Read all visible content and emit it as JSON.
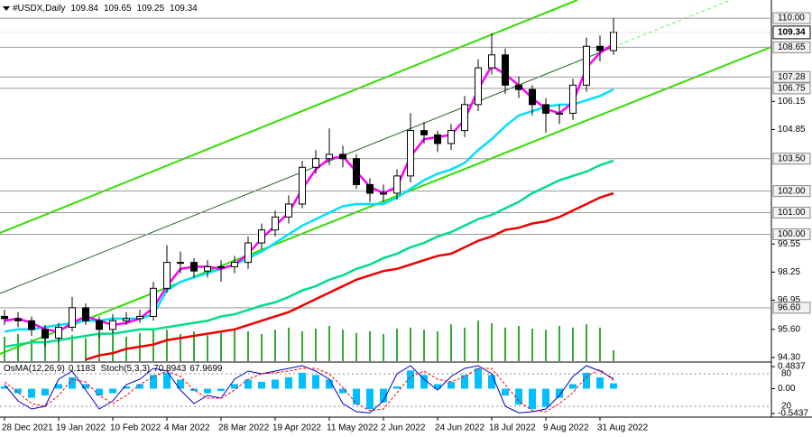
{
  "chart_data": [
    {
      "type": "candlestick",
      "title": "#USDX,Daily",
      "header_values": [
        109.84,
        109.65,
        109.25,
        109.34
      ],
      "categories": [
        "28 Dec 2021",
        null,
        null,
        null,
        "19 Jan 2022",
        null,
        null,
        null,
        "10 Feb 2022",
        null,
        null,
        null,
        "4 Mar 2022",
        null,
        null,
        null,
        "28 Mar 2022",
        null,
        null,
        null,
        "19 Apr 2022",
        null,
        null,
        null,
        "11 May 2022",
        null,
        null,
        null,
        "2 Jun 2022",
        null,
        null,
        null,
        "24 Jun 2022",
        null,
        null,
        null,
        "18 Jul 2022",
        null,
        null,
        null,
        "9 Aug 2022",
        null,
        null,
        null,
        "31 Aug 2022",
        null
      ],
      "open": [
        96.2,
        96.1,
        96.0,
        95.6,
        95.2,
        95.7,
        96.6,
        96.0,
        95.6,
        96.0,
        96.1,
        96.2,
        97.5,
        98.7,
        98.7,
        98.3,
        98.5,
        98.5,
        98.7,
        99.6,
        100.2,
        100.8,
        101.4,
        103.1,
        103.5,
        103.7,
        103.5,
        102.3,
        101.9,
        101.9,
        102.7,
        104.8,
        104.6,
        104.2,
        104.8,
        106.0,
        107.7,
        108.3,
        106.9,
        106.7,
        106.0,
        105.6,
        105.6,
        106.9,
        108.7,
        108.5
      ],
      "high": [
        96.5,
        96.4,
        96.2,
        95.8,
        95.9,
        97.1,
        96.8,
        96.2,
        96.3,
        96.4,
        96.5,
        97.8,
        99.5,
        99.2,
        98.9,
        98.8,
        98.8,
        99.0,
        99.9,
        100.5,
        101.1,
        101.8,
        103.4,
        103.9,
        104.9,
        104.1,
        103.7,
        102.6,
        102.3,
        103.0,
        105.6,
        105.2,
        104.8,
        105.1,
        106.4,
        108.1,
        109.3,
        108.6,
        107.3,
        106.9,
        106.3,
        106.0,
        107.2,
        109.1,
        109.2,
        110.0
      ],
      "low": [
        95.8,
        95.7,
        95.3,
        94.8,
        95.0,
        95.5,
        95.8,
        95.2,
        95.4,
        95.8,
        95.9,
        96.0,
        97.3,
        98.2,
        98.0,
        98.0,
        97.8,
        98.2,
        98.4,
        99.3,
        99.9,
        100.5,
        101.2,
        102.8,
        103.2,
        103.1,
        102.1,
        101.5,
        101.5,
        101.6,
        102.4,
        104.2,
        103.8,
        103.9,
        104.5,
        105.7,
        107.4,
        106.5,
        106.3,
        105.5,
        104.7,
        105.1,
        105.3,
        106.6,
        108.0,
        108.3
      ],
      "close": [
        96.1,
        96.0,
        95.6,
        95.2,
        95.7,
        96.6,
        96.0,
        95.6,
        96.0,
        96.1,
        96.2,
        97.5,
        98.7,
        98.7,
        98.3,
        98.5,
        98.5,
        98.7,
        99.6,
        100.2,
        100.8,
        101.4,
        103.1,
        103.5,
        103.7,
        103.5,
        102.3,
        101.9,
        101.9,
        102.7,
        104.8,
        104.6,
        104.2,
        104.8,
        106.0,
        107.7,
        108.3,
        106.9,
        106.7,
        106.0,
        105.6,
        105.6,
        106.9,
        108.7,
        108.5,
        109.34
      ],
      "series": [
        {
          "color": "#ee0000",
          "values": [
            null,
            null,
            null,
            null,
            null,
            null,
            94.2,
            94.4,
            94.5,
            94.7,
            94.8,
            94.9,
            95.1,
            95.2,
            95.3,
            95.4,
            95.5,
            95.6,
            95.8,
            96.0,
            96.2,
            96.4,
            96.7,
            97.0,
            97.3,
            97.6,
            97.9,
            98.1,
            98.3,
            98.4,
            98.6,
            98.8,
            99.0,
            99.1,
            99.4,
            99.7,
            99.9,
            100.2,
            100.3,
            100.5,
            100.6,
            100.8,
            101.1,
            101.4,
            101.7,
            101.9
          ]
        },
        {
          "color": "#00dd88",
          "values": [
            94.8,
            94.9,
            95.0,
            95.0,
            95.1,
            95.2,
            95.3,
            95.4,
            95.4,
            95.5,
            95.6,
            95.6,
            95.7,
            95.8,
            95.9,
            96.0,
            96.2,
            96.3,
            96.5,
            96.7,
            96.85,
            97.1,
            97.4,
            97.6,
            97.9,
            98.1,
            98.4,
            98.6,
            98.9,
            99.1,
            99.4,
            99.6,
            99.9,
            100.1,
            100.4,
            100.7,
            100.9,
            101.2,
            101.5,
            101.9,
            102.2,
            102.5,
            102.7,
            102.9,
            103.2,
            103.4
          ]
        },
        {
          "color": "#00e0ff",
          "values": [
            95.5,
            95.6,
            95.6,
            95.7,
            95.8,
            95.9,
            96.0,
            96.0,
            96.1,
            96.1,
            96.1,
            96.3,
            97.4,
            97.8,
            98.0,
            98.2,
            98.4,
            98.6,
            98.9,
            99.2,
            99.6,
            100.0,
            100.4,
            100.7,
            101.0,
            101.3,
            101.4,
            101.4,
            101.4,
            101.7,
            102.1,
            102.5,
            102.8,
            103.0,
            103.3,
            103.9,
            104.4,
            105.0,
            105.5,
            105.7,
            105.9,
            106.0,
            106.0,
            106.2,
            106.4,
            106.7
          ]
        },
        {
          "color": "#ff00ff",
          "values": [
            96.0,
            96.1,
            95.9,
            95.6,
            95.5,
            95.9,
            96.2,
            96.0,
            95.8,
            95.9,
            96.1,
            96.6,
            97.6,
            98.4,
            98.5,
            98.5,
            98.4,
            98.6,
            99.1,
            99.8,
            100.4,
            101.0,
            102.1,
            103.0,
            103.5,
            103.6,
            102.9,
            102.2,
            101.9,
            102.2,
            103.6,
            104.4,
            104.5,
            104.6,
            105.3,
            106.7,
            107.8,
            107.4,
            106.9,
            106.3,
            105.8,
            105.6,
            106.1,
            107.7,
            108.4,
            108.8
          ]
        }
      ],
      "volume": {
        "color": "#33aa33",
        "values": [
          45,
          50,
          40,
          55,
          60,
          48,
          42,
          50,
          55,
          45,
          52,
          60,
          58,
          50,
          55,
          48,
          52,
          60,
          55,
          50,
          58,
          62,
          55,
          60,
          65,
          58,
          52,
          55,
          50,
          60,
          62,
          58,
          55,
          68,
          62,
          75,
          70,
          62,
          65,
          60,
          58,
          65,
          62,
          68,
          62,
          20
        ]
      },
      "ylim": [
        94.13,
        110.84
      ],
      "yticks": [
        {
          "value": 94.3,
          "label": "94.30"
        },
        {
          "value": 95.6,
          "label": "95.60"
        },
        96.95,
        98.25,
        99.55,
        104.85,
        106.15
      ],
      "levels": [
        {
          "value": 110,
          "label": "110.00"
        },
        108.65,
        107.28,
        106.75,
        {
          "value": 103.5,
          "label": "103.50"
        },
        {
          "value": 102,
          "label": "102.00"
        },
        {
          "value": 101,
          "label": "101.00"
        },
        {
          "value": 100,
          "label": "100.00"
        },
        {
          "value": 96.6,
          "label": "96.60"
        }
      ]
    },
    {
      "type": "oscillator",
      "series": [
        {
          "name": "OsMA(12,26,9)",
          "color": "#00bfff",
          "values": [
            0.05,
            -0.1,
            -0.2,
            -0.15,
            0.1,
            0.25,
            0.1,
            -0.15,
            -0.1,
            0.05,
            0.1,
            0.3,
            0.35,
            0.2,
            -0.05,
            -0.1,
            -0.05,
            0.1,
            0.2,
            0.15,
            0.2,
            0.25,
            0.35,
            0.3,
            0.2,
            -0.1,
            -0.35,
            -0.45,
            -0.3,
            0.05,
            0.4,
            0.3,
            0.1,
            0.15,
            0.3,
            0.45,
            0.3,
            -0.15,
            -0.35,
            -0.45,
            -0.4,
            -0.2,
            0.1,
            0.35,
            0.25,
            0.1183
          ]
        },
        {
          "name": "Stoch(5,3,3)",
          "color": "#0000cc",
          "axis": "y2",
          "values": [
            60,
            30,
            15,
            20,
            70,
            85,
            50,
            15,
            30,
            60,
            70,
            90,
            85,
            50,
            25,
            40,
            35,
            70,
            85,
            80,
            85,
            90,
            95,
            85,
            70,
            25,
            10,
            8,
            30,
            80,
            95,
            70,
            50,
            75,
            90,
            95,
            80,
            20,
            8,
            10,
            15,
            40,
            75,
            95,
            85,
            70.8943
          ]
        },
        {
          "color": "#ff0000",
          "axis": "y2",
          "values": [
            65,
            45,
            25,
            20,
            40,
            70,
            65,
            40,
            25,
            40,
            60,
            75,
            85,
            75,
            50,
            35,
            35,
            50,
            70,
            80,
            82,
            85,
            90,
            90,
            80,
            55,
            25,
            12,
            15,
            45,
            75,
            85,
            70,
            65,
            75,
            90,
            90,
            60,
            30,
            12,
            10,
            25,
            45,
            75,
            88,
            67.9699
          ]
        }
      ],
      "ylim": [
        -0.6243,
        0.5643
      ],
      "yticks": [
        0.4837,
        {
          "value": 0,
          "label": "0.00"
        },
        -0.5437
      ],
      "y2lim": [
        0,
        100
      ],
      "y2ticks": [
        80,
        20
      ]
    }
  ]
}
